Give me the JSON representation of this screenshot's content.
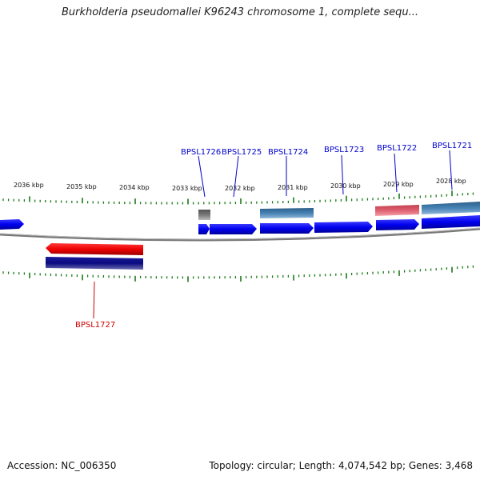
{
  "title": "Burkholderia pseudomallei K96243 chromosome 1, complete sequ...",
  "footer": {
    "accession": "Accession: NC_006350",
    "info": "Topology: circular; Length: 4,074,542 bp; Genes: 3,468"
  },
  "scale_labels": [
    "2036 kbp",
    "2035 kbp",
    "2034 kbp",
    "2033 kbp",
    "2032 kbp",
    "2031 kbp",
    "2030 kbp",
    "2029 kbp",
    "2028 kbp"
  ],
  "genes": [
    {
      "name": "BPSL1726",
      "strand": "+",
      "color": "#0000cc"
    },
    {
      "name": "BPSL1725",
      "strand": "+",
      "color": "#0000cc"
    },
    {
      "name": "BPSL1724",
      "strand": "+",
      "color": "#0000cc"
    },
    {
      "name": "BPSL1723",
      "strand": "+",
      "color": "#0000cc"
    },
    {
      "name": "BPSL1722",
      "strand": "+",
      "color": "#0000cc"
    },
    {
      "name": "BPSL1721",
      "strand": "+",
      "color": "#0000cc"
    },
    {
      "name": "BPSL1727",
      "strand": "-",
      "color": "#cc0000"
    }
  ],
  "colors": {
    "forward_gene": "#0000ee",
    "reverse_gene": "#ee0000",
    "tick": "#1a7a1a",
    "backbone": "#777777",
    "gray_feature": "#777777",
    "steelblue_feature": "#4682b4",
    "pink_feature": "#e06070",
    "navy_feature": "#0a0a80"
  }
}
